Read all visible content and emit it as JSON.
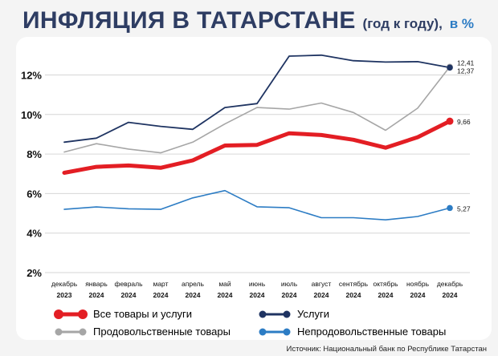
{
  "header": {
    "title": "ИНФЛЯЦИЯ В ТАТАРСТАНЕ",
    "subtitle": "(год к году),",
    "unit": "в %"
  },
  "source": "Источник: Национальный банк по Республике Татарстан",
  "chart_data": {
    "type": "line",
    "title": "ИНФЛЯЦИЯ В ТАТАРСТАНЕ (год к году), в %",
    "xlabel": "",
    "ylabel": "",
    "ylim": [
      2,
      13.6
    ],
    "yticks": [
      2,
      4,
      6,
      8,
      10,
      12
    ],
    "ytick_labels": [
      "2%",
      "4%",
      "6%",
      "8%",
      "10%",
      "12%"
    ],
    "grid": true,
    "legend_position": "bottom",
    "categories": [
      {
        "month": "декабрь",
        "year": "2023"
      },
      {
        "month": "январь",
        "year": "2024"
      },
      {
        "month": "февраль",
        "year": "2024"
      },
      {
        "month": "март",
        "year": "2024"
      },
      {
        "month": "апрель",
        "year": "2024"
      },
      {
        "month": "май",
        "year": "2024"
      },
      {
        "month": "июнь",
        "year": "2024"
      },
      {
        "month": "июль",
        "year": "2024"
      },
      {
        "month": "август",
        "year": "2024"
      },
      {
        "month": "сентябрь",
        "year": "2024"
      },
      {
        "month": "октябрь",
        "year": "2024"
      },
      {
        "month": "ноябрь",
        "year": "2024"
      },
      {
        "month": "декабрь",
        "year": "2024"
      }
    ],
    "series": [
      {
        "key": "all",
        "name": "Все товары и услуги",
        "color": "#e31e24",
        "values": [
          7.05,
          7.35,
          7.42,
          7.3,
          7.68,
          8.43,
          8.46,
          9.05,
          8.96,
          8.72,
          8.32,
          8.85,
          9.66
        ],
        "end_label": "9,66"
      },
      {
        "key": "services",
        "name": "Услуги",
        "color": "#1f3462",
        "values": [
          8.6,
          8.8,
          9.6,
          9.4,
          9.25,
          10.35,
          10.55,
          12.95,
          13.0,
          12.72,
          12.65,
          12.67,
          12.37
        ],
        "end_label": "12,37"
      },
      {
        "key": "food",
        "name": "Продовольственные товары",
        "color": "#a6a6a6",
        "values": [
          8.1,
          8.52,
          8.25,
          8.06,
          8.6,
          9.52,
          10.35,
          10.27,
          10.58,
          10.1,
          9.2,
          10.32,
          12.41
        ],
        "end_label": "12,41"
      },
      {
        "key": "nonfood",
        "name": "Непродовольственные товары",
        "color": "#2c7cc4",
        "values": [
          5.2,
          5.32,
          5.23,
          5.2,
          5.78,
          6.15,
          5.33,
          5.28,
          4.78,
          4.78,
          4.67,
          4.84,
          5.27
        ],
        "end_label": "5,27"
      }
    ]
  }
}
